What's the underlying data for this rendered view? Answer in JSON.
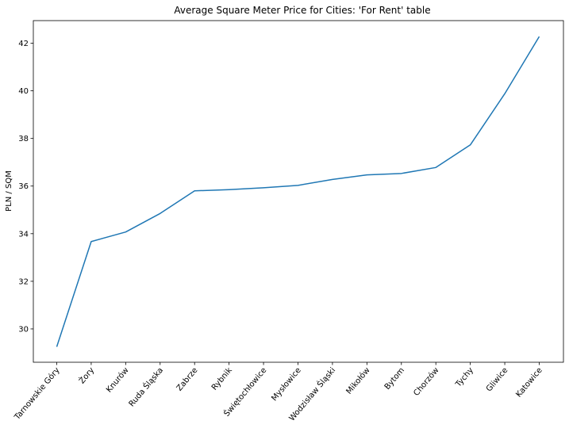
{
  "chart_data": {
    "type": "line",
    "title": "Average Square Meter Price for Cities: 'For Rent' table",
    "xlabel": "",
    "ylabel": "PLN / SQM",
    "categories": [
      "Tarnowskie Góry",
      "Żory",
      "Knurów",
      "Ruda Śląska",
      "Zabrze",
      "Rybnik",
      "Świętochłowice",
      "Mysłowice",
      "Wodzisław Śląski",
      "Mikołów",
      "Bytom",
      "Chorzów",
      "Tychy",
      "Gliwice",
      "Katowice"
    ],
    "series": [
      {
        "values": [
          29.25,
          33.67,
          34.07,
          34.85,
          35.8,
          35.85,
          35.93,
          36.03,
          36.28,
          36.47,
          36.53,
          36.78,
          37.73,
          39.88,
          42.28
        ],
        "color": "#1f77b4"
      }
    ],
    "yticks": [
      30,
      32,
      34,
      36,
      38,
      40,
      42
    ],
    "ylim": [
      28.6,
      42.95
    ],
    "grid": false,
    "legend": "none"
  }
}
